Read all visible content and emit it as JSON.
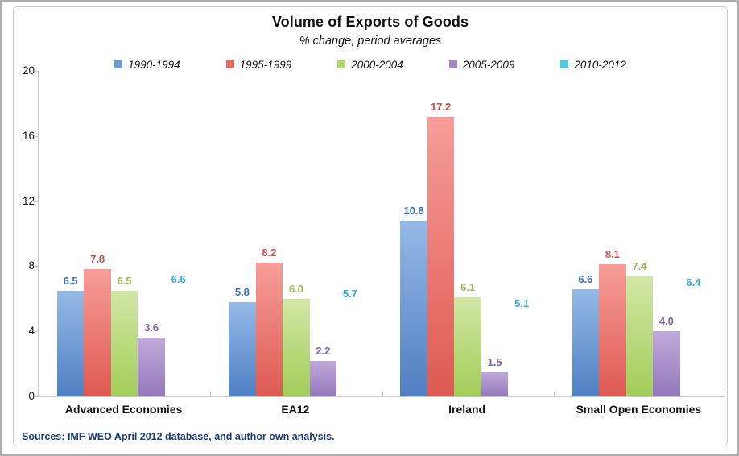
{
  "chart_data": {
    "type": "bar",
    "title": "Volume of Exports of Goods",
    "subtitle": "% change, period averages",
    "categories": [
      "Advanced Economies",
      "EA12",
      "Ireland",
      "Small Open Economies"
    ],
    "series": [
      {
        "name": "1990-1994",
        "values": [
          6.5,
          5.8,
          10.8,
          6.6
        ],
        "color": "#6d9bd3",
        "gradient_top": "#96b9e6",
        "gradient_bottom": "#4f80c3",
        "label_color": "#3f6db5"
      },
      {
        "name": "1995-1999",
        "values": [
          7.8,
          8.2,
          17.2,
          8.1
        ],
        "color": "#e96a63",
        "gradient_top": "#f79d98",
        "gradient_bottom": "#dd5a52",
        "label_color": "#c0504d"
      },
      {
        "name": "2000-2004",
        "values": [
          6.5,
          6.0,
          6.1,
          7.4
        ],
        "color": "#b3d671",
        "gradient_top": "#d2e7a6",
        "gradient_bottom": "#a2cd58",
        "label_color": "#9bbb59"
      },
      {
        "name": "2005-2009",
        "values": [
          3.6,
          2.2,
          1.5,
          4.0
        ],
        "color": "#a288c6",
        "gradient_top": "#c1aad9",
        "gradient_bottom": "#9478bc",
        "label_color": "#7d62a8"
      },
      {
        "name": "2010-2012",
        "values": [
          6.6,
          5.7,
          5.1,
          6.4
        ],
        "color": "#4cc8e8",
        "gradient_top": "#8add7",
        "gradient_bottom": "#38bee2",
        "label_color": "#31aad4"
      }
    ],
    "ylim": [
      0,
      20
    ],
    "yticks": [
      0,
      4,
      8,
      12,
      16,
      20
    ],
    "grid": false,
    "legend_position": "top",
    "value_label_decimals": 1,
    "source_note": "Sources: IMF WEO April 2012 database, and author own analysis.",
    "source_note_color": "#1b3c78",
    "axis_color": "#c6c6c6"
  }
}
